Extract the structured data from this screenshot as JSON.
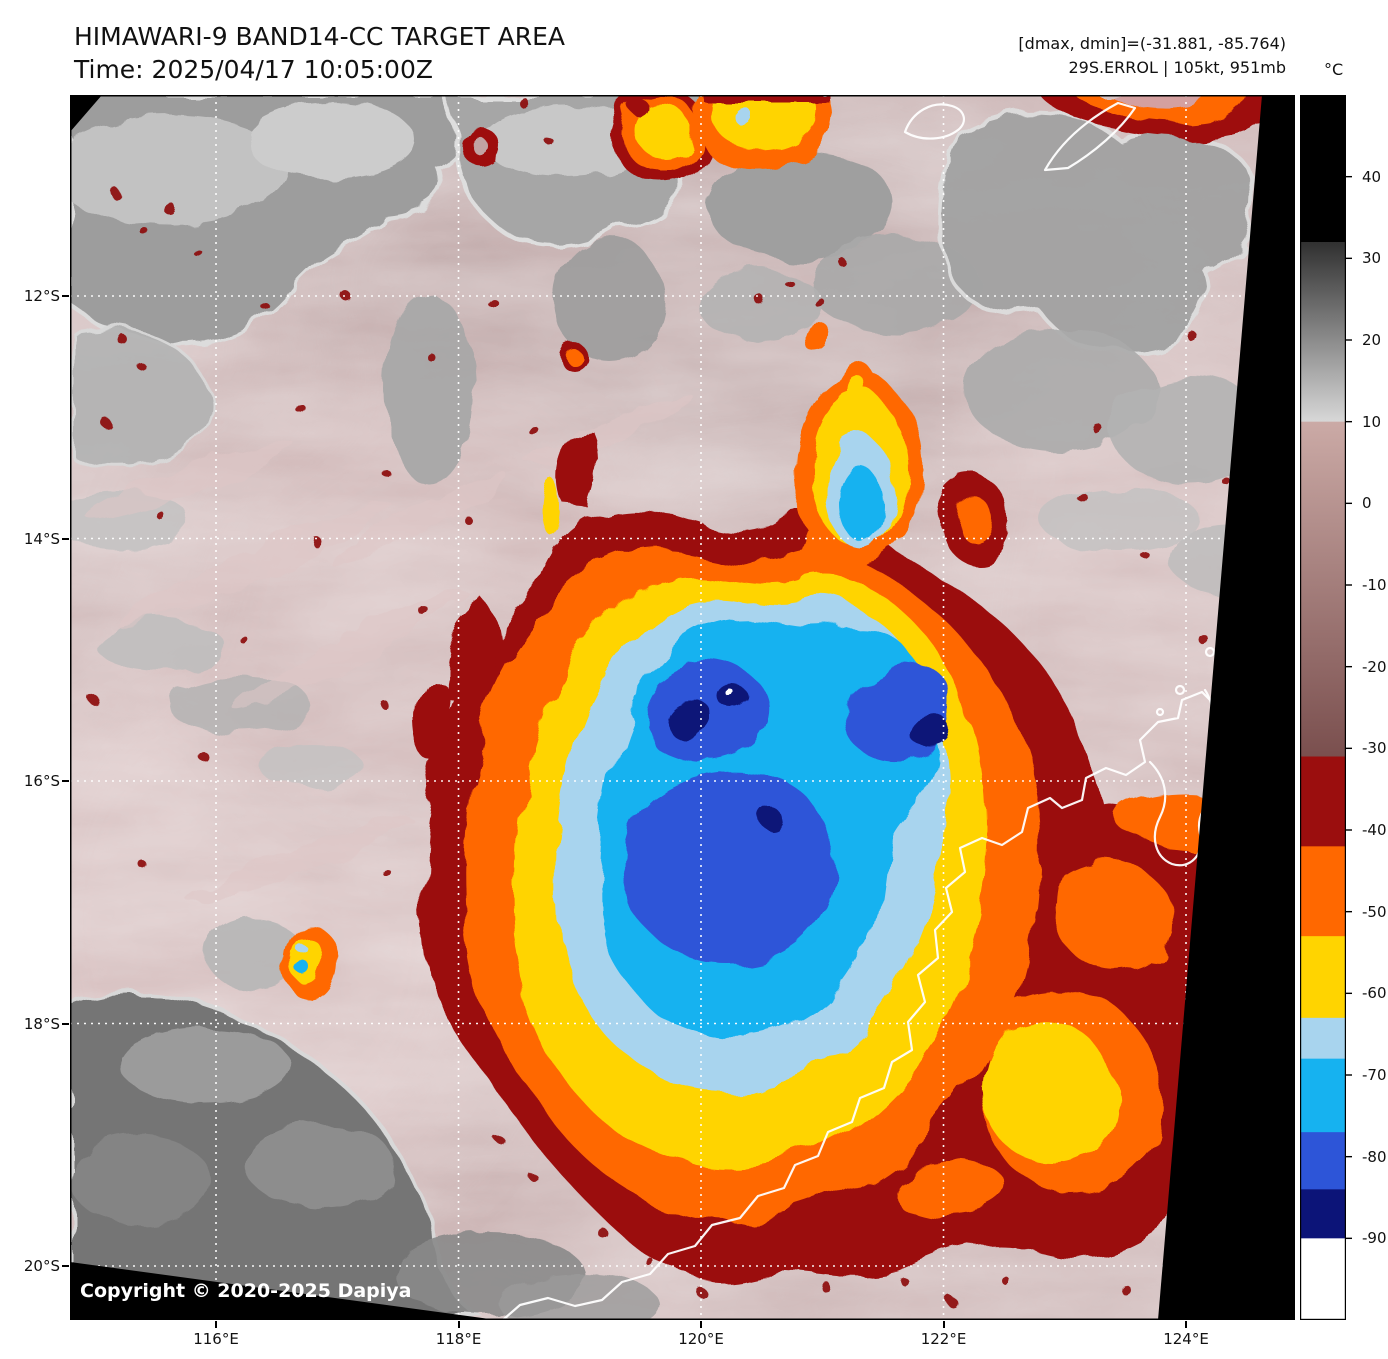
{
  "header": {
    "title": "HIMAWARI-9 BAND14-CC TARGET AREA",
    "time_line": "Time: 2025/04/17 10:05:00Z",
    "dmax_dmin_readout": "[dmax, dmin]=(-31.881, -85.764)",
    "storm_readout": "29S.ERROL | 105kt, 951mb"
  },
  "map": {
    "lat_labels": [
      "12°S",
      "14°S",
      "16°S",
      "18°S",
      "20°S"
    ],
    "lon_labels": [
      "116°E",
      "118°E",
      "120°E",
      "122°E",
      "124°E"
    ],
    "copyright": "Copyright © 2020-2025 Dapiya"
  },
  "colorbar": {
    "unit": "°C",
    "tick_labels": [
      "40",
      "30",
      "20",
      "10",
      "0",
      "-10",
      "-20",
      "-30",
      "-40",
      "-50",
      "-60",
      "-70",
      "-80",
      "-90"
    ],
    "value_range": [
      50,
      -100
    ],
    "segments": [
      {
        "from": 50,
        "to": 32,
        "color": "#000000"
      },
      {
        "from": 32,
        "to": 10,
        "color_top": "#303030",
        "color_bottom": "#d8d8d8"
      },
      {
        "from": 10,
        "to": -31,
        "color_top": "#cbaaa6",
        "color_bottom": "#7a4f4e"
      },
      {
        "from": -31,
        "to": -42,
        "color": "#9b0e0e"
      },
      {
        "from": -42,
        "to": -53,
        "color": "#ff6800"
      },
      {
        "from": -53,
        "to": -63,
        "color": "#ffd400"
      },
      {
        "from": -63,
        "to": -68,
        "color": "#a8d4ee"
      },
      {
        "from": -68,
        "to": -77,
        "color": "#16b2f0"
      },
      {
        "from": -77,
        "to": -84,
        "color": "#2d55d8"
      },
      {
        "from": -84,
        "to": -90,
        "color": "#0c1478"
      },
      {
        "from": -90,
        "to": -100,
        "color": "#ffffff"
      }
    ]
  },
  "palette": {
    "background_warm": "#bfa2a2",
    "cloud_gray": "#9d9d9d",
    "cold_darkred": "#9b0e0e",
    "cold_orange": "#ff6800",
    "cold_yellow": "#ffd400",
    "cold_lightblue": "#a8d4ee",
    "cold_cyan": "#16b2f0",
    "cold_blue": "#2d55d8",
    "cold_navy": "#0c1478"
  }
}
